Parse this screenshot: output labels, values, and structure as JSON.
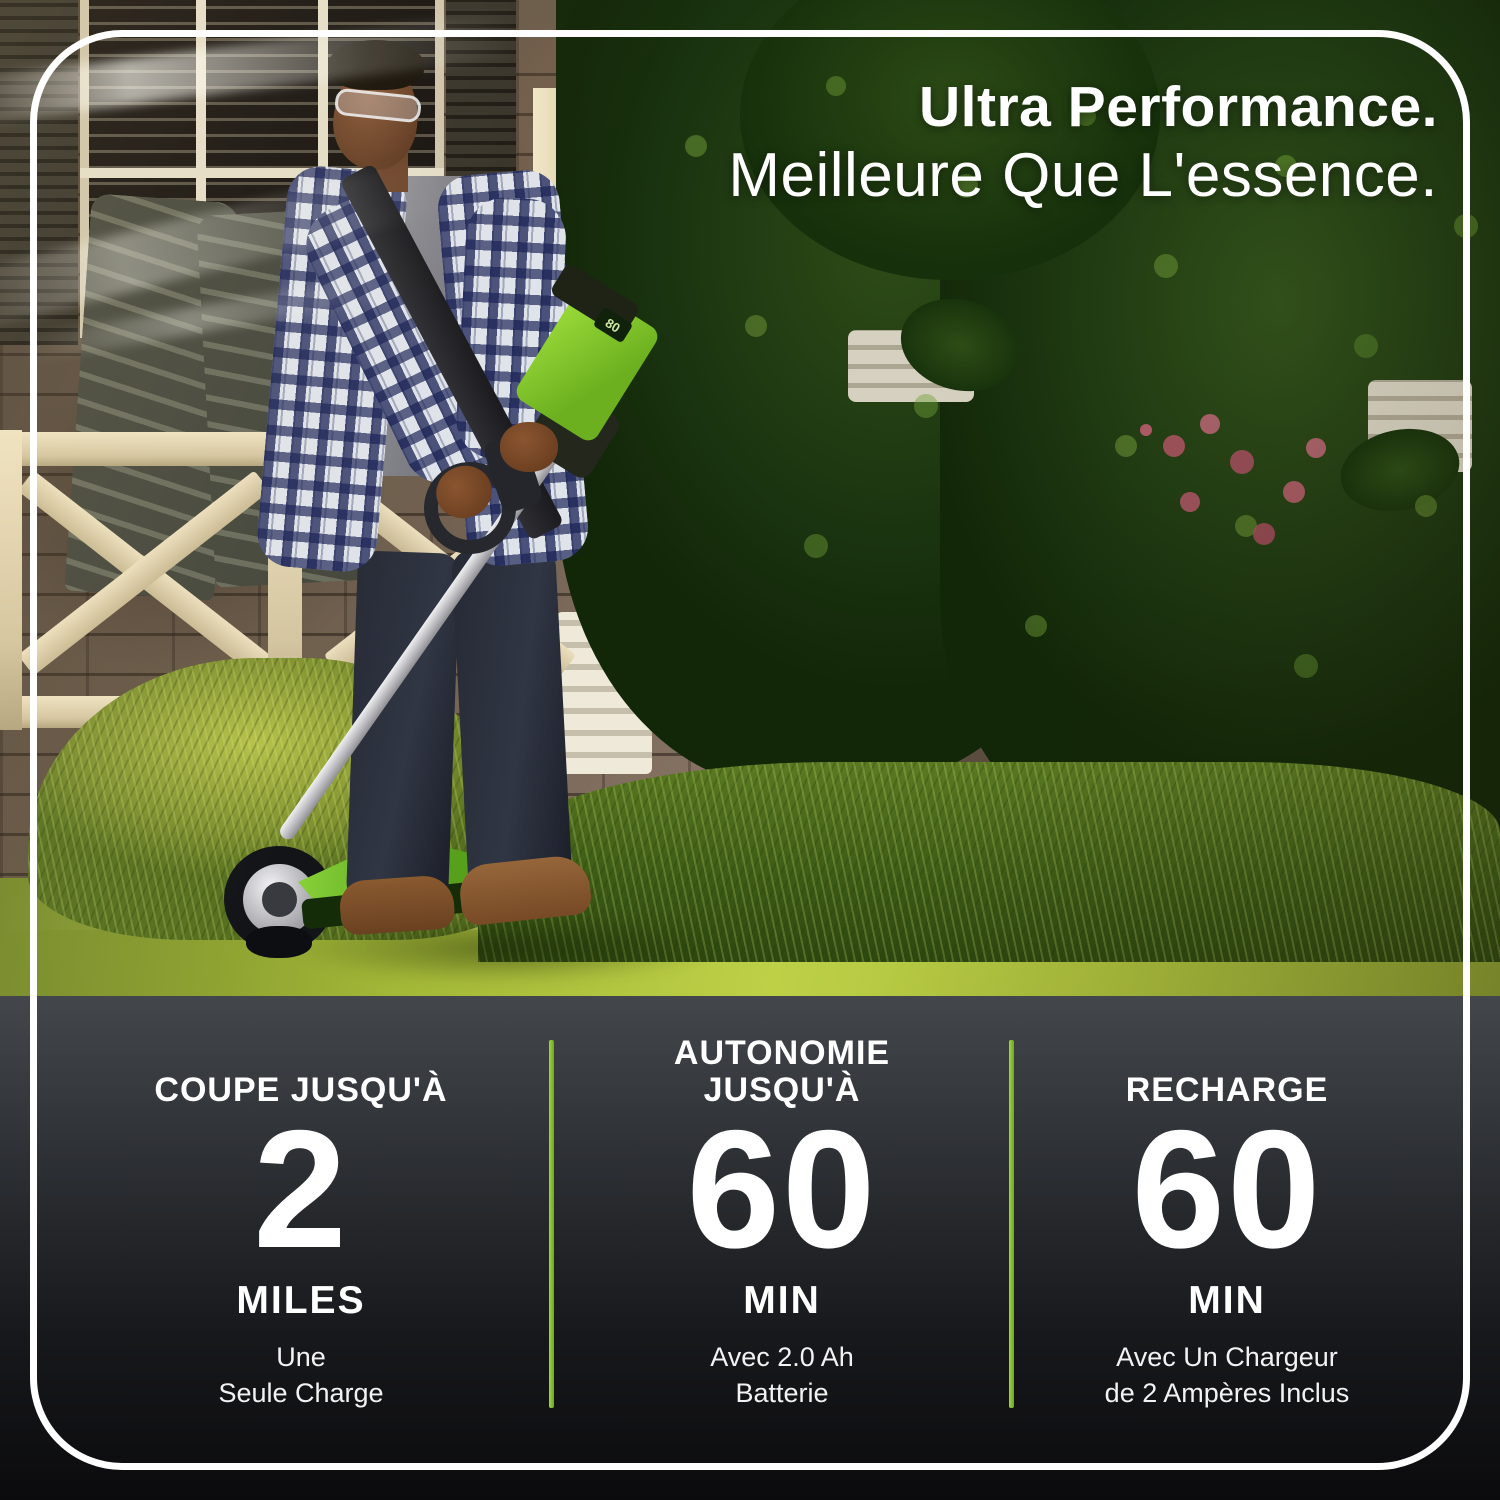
{
  "headline": {
    "line1": "Ultra Performance.",
    "line2": "Meilleure Que L'essence."
  },
  "stats": {
    "columns": [
      {
        "label": "COUPE JUSQU'À",
        "value": "2",
        "unit": "MILES",
        "note": "Une\nSeule Charge"
      },
      {
        "label": "AUTONOMIE\nJUSQU'À",
        "value": "60",
        "unit": "MIN",
        "note": "Avec 2.0 Ah\nBatterie"
      },
      {
        "label": "RECHARGE",
        "value": "60",
        "unit": "MIN",
        "note": "Avec Un Chargeur\nde 2 Ampères Inclus"
      }
    ]
  },
  "photo": {
    "description": "Man trimming lawn edge with battery string trimmer in front of brick house",
    "battery_screen": "80"
  },
  "colors": {
    "accent_green": "#6ea916",
    "panel_top": "#43474c",
    "panel_bottom": "#0b0b0d",
    "frame_white": "#ffffff",
    "headline_white": "#ffffff"
  }
}
